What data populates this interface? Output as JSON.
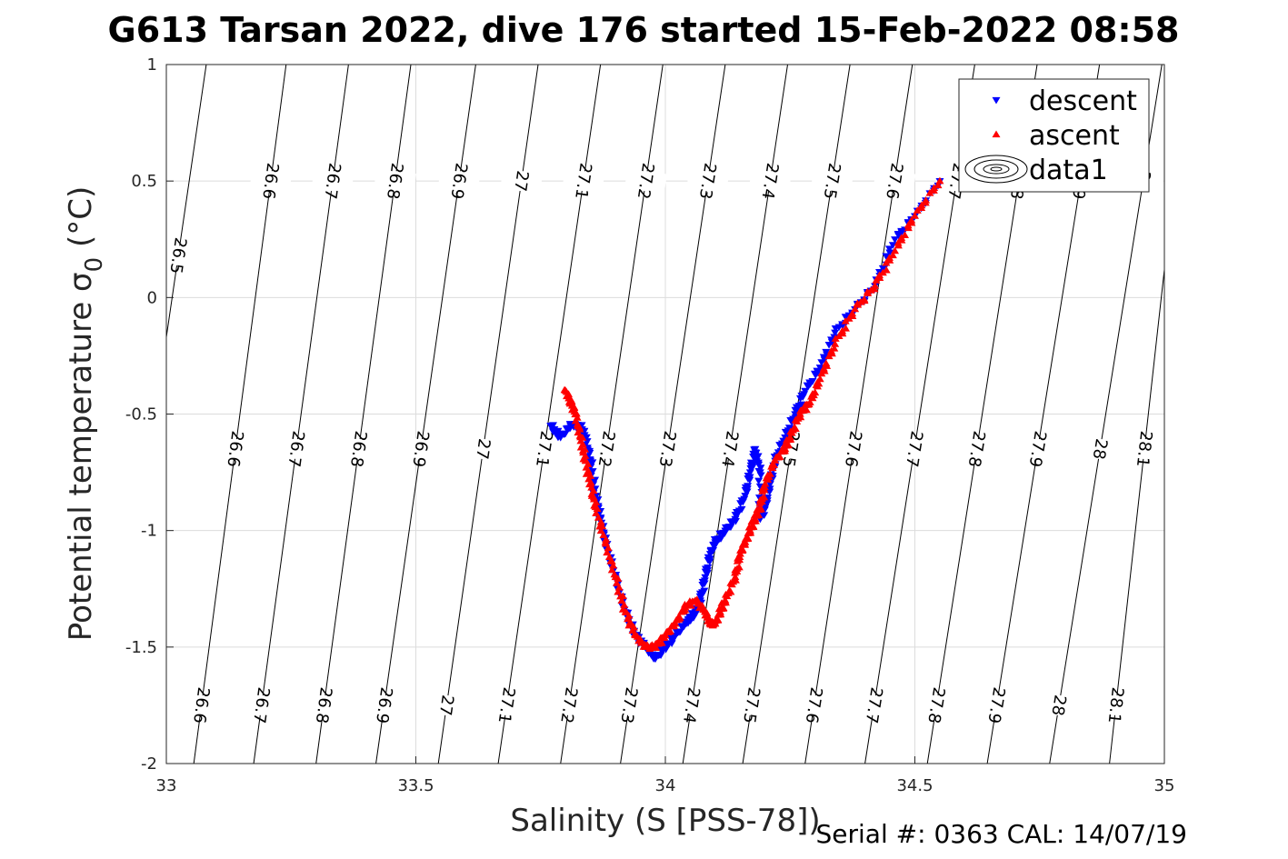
{
  "chart_data": {
    "type": "scatter",
    "title": "G613 Tarsan 2022, dive 176 started 15-Feb-2022 08:58",
    "xlabel": "Salinity (S [PSS-78])",
    "ylabel": "Potential temperature σ",
    "ylabel_subscript": "0",
    "ylabel_units": " (°C)",
    "xlim": [
      33,
      35
    ],
    "ylim": [
      -2,
      1
    ],
    "xticks": [
      "33",
      "33.5",
      "34",
      "34.5",
      "35"
    ],
    "yticks": [
      "1",
      "0.5",
      "0",
      "-0.5",
      "-1",
      "-1.5",
      "-2"
    ],
    "grid": true,
    "legend_position": "top-right",
    "legend": [
      "descent",
      "ascent",
      "data1"
    ],
    "footer": "Serial #: 0363  CAL: 14/07/19",
    "contour_levels": [
      "26.5",
      "26.6",
      "26.7",
      "26.8",
      "26.9",
      "27",
      "27.1",
      "27.2",
      "27.3",
      "27.4",
      "27.5",
      "27.6",
      "27.7",
      "27.8",
      "27.9",
      "28",
      "28.1"
    ],
    "contours": [
      {
        "level": "26.5",
        "s_at_t": [
          [
            -0.17,
            33.0
          ],
          [
            1.0,
            33.08
          ]
        ]
      },
      {
        "level": "26.6",
        "s_at_t": [
          [
            -2.0,
            33.055
          ],
          [
            1.0,
            33.24
          ]
        ]
      },
      {
        "level": "26.7",
        "s_at_t": [
          [
            -2.0,
            33.175
          ],
          [
            1.0,
            33.365
          ]
        ]
      },
      {
        "level": "26.8",
        "s_at_t": [
          [
            -2.0,
            33.3
          ],
          [
            1.0,
            33.49
          ]
        ]
      },
      {
        "level": "26.9",
        "s_at_t": [
          [
            -2.0,
            33.42
          ],
          [
            1.0,
            33.62
          ]
        ]
      },
      {
        "level": "27",
        "s_at_t": [
          [
            -2.0,
            33.545
          ],
          [
            1.0,
            33.745
          ]
        ]
      },
      {
        "level": "27.1",
        "s_at_t": [
          [
            -2.0,
            33.665
          ],
          [
            1.0,
            33.87
          ]
        ]
      },
      {
        "level": "27.2",
        "s_at_t": [
          [
            -2.0,
            33.79
          ],
          [
            1.0,
            33.995
          ]
        ]
      },
      {
        "level": "27.3",
        "s_at_t": [
          [
            -2.0,
            33.91
          ],
          [
            1.0,
            34.12
          ]
        ]
      },
      {
        "level": "27.4",
        "s_at_t": [
          [
            -2.0,
            34.035
          ],
          [
            1.0,
            34.245
          ]
        ]
      },
      {
        "level": "27.5",
        "s_at_t": [
          [
            -2.0,
            34.155
          ],
          [
            1.0,
            34.37
          ]
        ]
      },
      {
        "level": "27.6",
        "s_at_t": [
          [
            -2.0,
            34.28
          ],
          [
            1.0,
            34.495
          ]
        ]
      },
      {
        "level": "27.7",
        "s_at_t": [
          [
            -2.0,
            34.4
          ],
          [
            1.0,
            34.62
          ]
        ]
      },
      {
        "level": "27.8",
        "s_at_t": [
          [
            -2.0,
            34.525
          ],
          [
            1.0,
            34.745
          ]
        ]
      },
      {
        "level": "27.9",
        "s_at_t": [
          [
            -2.0,
            34.645
          ],
          [
            1.0,
            34.87
          ]
        ]
      },
      {
        "level": "28",
        "s_at_t": [
          [
            -2.0,
            34.77
          ],
          [
            1.0,
            34.995
          ]
        ]
      },
      {
        "level": "28.1",
        "s_at_t": [
          [
            -2.0,
            34.89
          ],
          [
            0.12,
            35.0
          ]
        ]
      }
    ],
    "series": [
      {
        "name": "descent",
        "color": "#0000ff",
        "marker": "triangle-down",
        "x": [
          34.55,
          34.5,
          34.46,
          34.42,
          34.38,
          34.34,
          34.31,
          34.28,
          34.26,
          34.24,
          34.22,
          34.21,
          34.2,
          34.19,
          34.19,
          34.18,
          34.17,
          34.16,
          34.14,
          34.12,
          34.1,
          34.09,
          34.08,
          34.07,
          34.06,
          34.05,
          34.04,
          34.02,
          34.0,
          33.98,
          33.96,
          33.94,
          33.92,
          33.9,
          33.88,
          33.87,
          33.86,
          33.85,
          33.84,
          33.83,
          33.81,
          33.79,
          33.77
        ],
        "y": [
          0.5,
          0.35,
          0.25,
          0.05,
          -0.05,
          -0.15,
          -0.3,
          -0.4,
          -0.5,
          -0.6,
          -0.7,
          -0.8,
          -0.9,
          -0.95,
          -0.75,
          -0.65,
          -0.75,
          -0.85,
          -0.95,
          -1.0,
          -1.05,
          -1.1,
          -1.2,
          -1.3,
          -1.35,
          -1.38,
          -1.4,
          -1.45,
          -1.5,
          -1.55,
          -1.5,
          -1.45,
          -1.35,
          -1.2,
          -1.05,
          -0.95,
          -0.85,
          -0.7,
          -0.6,
          -0.55,
          -0.55,
          -0.6,
          -0.55
        ]
      },
      {
        "name": "ascent",
        "color": "#ff0000",
        "marker": "triangle-up",
        "x": [
          34.55,
          34.5,
          34.46,
          34.42,
          34.38,
          34.34,
          34.31,
          34.29,
          34.27,
          34.25,
          34.24,
          34.22,
          34.2,
          34.19,
          34.18,
          34.17,
          34.16,
          34.15,
          34.14,
          34.12,
          34.11,
          34.1,
          34.09,
          34.08,
          34.06,
          34.04,
          34.02,
          34.0,
          33.98,
          33.96,
          33.94,
          33.92,
          33.9,
          33.88,
          33.86,
          33.85,
          33.84,
          33.83,
          33.82,
          33.81,
          33.8
        ],
        "y": [
          0.5,
          0.35,
          0.2,
          0.05,
          -0.05,
          -0.2,
          -0.35,
          -0.45,
          -0.5,
          -0.6,
          -0.65,
          -0.7,
          -0.8,
          -0.9,
          -0.95,
          -1.0,
          -1.05,
          -1.1,
          -1.2,
          -1.3,
          -1.35,
          -1.4,
          -1.4,
          -1.35,
          -1.3,
          -1.33,
          -1.4,
          -1.45,
          -1.5,
          -1.5,
          -1.45,
          -1.35,
          -1.2,
          -1.05,
          -0.9,
          -0.8,
          -0.7,
          -0.6,
          -0.5,
          -0.45,
          -0.4
        ]
      },
      {
        "name": "data1",
        "color": "#000000",
        "marker": "contour"
      }
    ]
  }
}
